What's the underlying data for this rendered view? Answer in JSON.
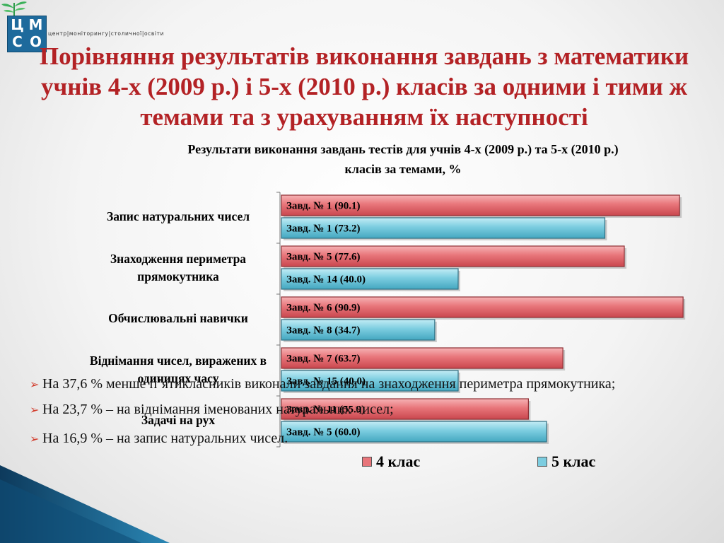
{
  "logo": {
    "letters": [
      "Ц",
      "М",
      "С",
      "О"
    ],
    "strip_text": "центр|моніторингу|столичної|освіти"
  },
  "title": "Порівняння результатів виконання завдань з математики учнів 4-х (2009 р.) і 5-х (2010 р.) класів за одними і тими ж темами та з урахуванням їх наступності",
  "colors": {
    "title": "#b32225",
    "grade4": "#e8757a",
    "grade5": "#7ccde0"
  },
  "chart_data": {
    "type": "bar",
    "orientation": "horizontal",
    "title": "Результати виконання завдань тестів для учнів 4-х (2009 р.) та 5-х (2010 р.) класів за темами, %",
    "categories": [
      "Запис натуральних чисел",
      "Знаходження периметра прямокутника",
      "Обчислювальні навички",
      "Віднімання чисел, виражених в одиницях часу",
      "Задачі на рух"
    ],
    "series": [
      {
        "name": "4 клас",
        "values": [
          90.1,
          77.6,
          90.9,
          63.7,
          55.9
        ],
        "bar_labels": [
          "Завд. № 1 (90.1)",
          "Завд. № 5 (77.6)",
          "Завд. № 6 (90.9)",
          "Завд. № 7 (63.7)",
          "Завд. № 11 (55.9)"
        ]
      },
      {
        "name": "5 клас",
        "values": [
          73.2,
          40.0,
          34.7,
          40.0,
          60.0
        ],
        "bar_labels": [
          "Завд. № 1 (73.2)",
          "Завд. № 14 (40.0)",
          "Завд. № 8 (34.7)",
          "Завд. № 15 (40.0)",
          "Завд. № 5 (60.0)"
        ]
      }
    ],
    "xlim": [
      0,
      100
    ],
    "legend": "bottom"
  },
  "bullets": [
    "На 37,6 % менше п’ятикласників виконали завдання на знаходження периметра прямокутника;",
    "На 23,7 % – на віднімання іменованих натуральних чисел;",
    "На 16,9 % – на запис натуральних чисел."
  ]
}
